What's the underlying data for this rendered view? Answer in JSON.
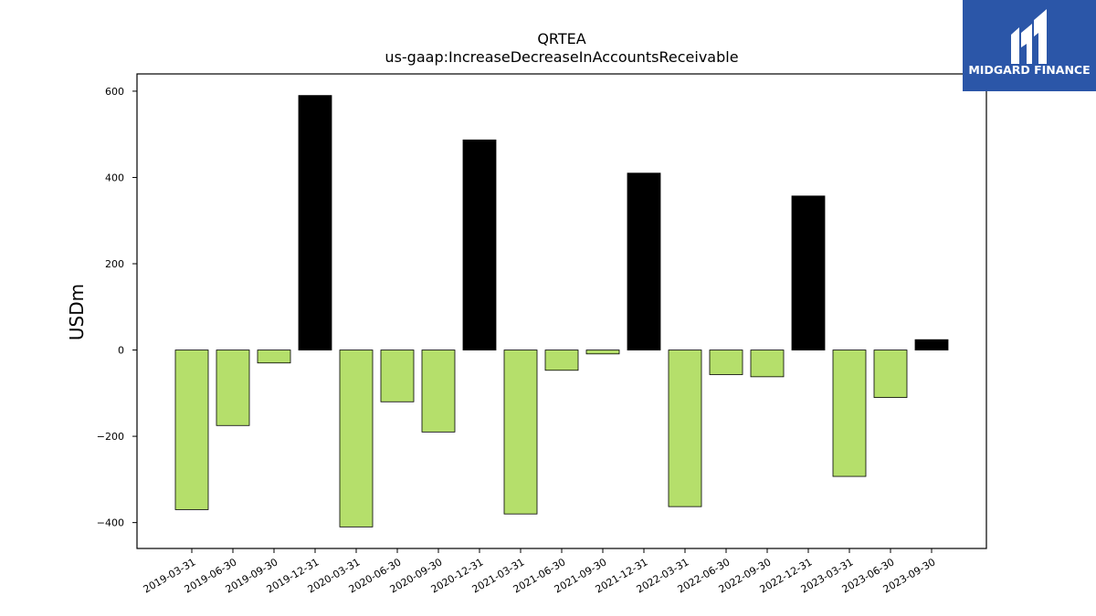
{
  "colors": {
    "negative": "#b5df6b",
    "positive": "#000000",
    "bar_edge": "#000000",
    "logo_bg": "#2b56a8",
    "logo_fg": "#ffffff"
  },
  "logo": {
    "text": "MIDGARD FINANCE",
    "icon": "midgard-monogram-icon"
  },
  "chart_data": {
    "type": "bar",
    "title": "QRTEA",
    "subtitle": "us-gaap:IncreaseDecreaseInAccountsReceivable",
    "xlabel": "",
    "ylabel": "USDm",
    "ylim": [
      -460,
      640
    ],
    "yticks": [
      600,
      400,
      200,
      0,
      -200,
      -400
    ],
    "ytick_labels": [
      "600",
      "400",
      "200",
      "0",
      "−200",
      "−400"
    ],
    "grid": false,
    "categories": [
      "2019-03-31",
      "2019-06-30",
      "2019-09-30",
      "2019-12-31",
      "2020-03-31",
      "2020-06-30",
      "2020-09-30",
      "2020-12-31",
      "2021-03-31",
      "2021-06-30",
      "2021-09-30",
      "2021-12-31",
      "2022-03-31",
      "2022-06-30",
      "2022-09-30",
      "2022-12-31",
      "2023-03-31",
      "2023-06-30",
      "2023-09-30"
    ],
    "values": [
      -370,
      -175,
      -30,
      590,
      -410,
      -120,
      -190,
      487,
      -380,
      -47,
      -9,
      410,
      -363,
      -57,
      -62,
      357,
      -293,
      -110,
      24
    ]
  }
}
